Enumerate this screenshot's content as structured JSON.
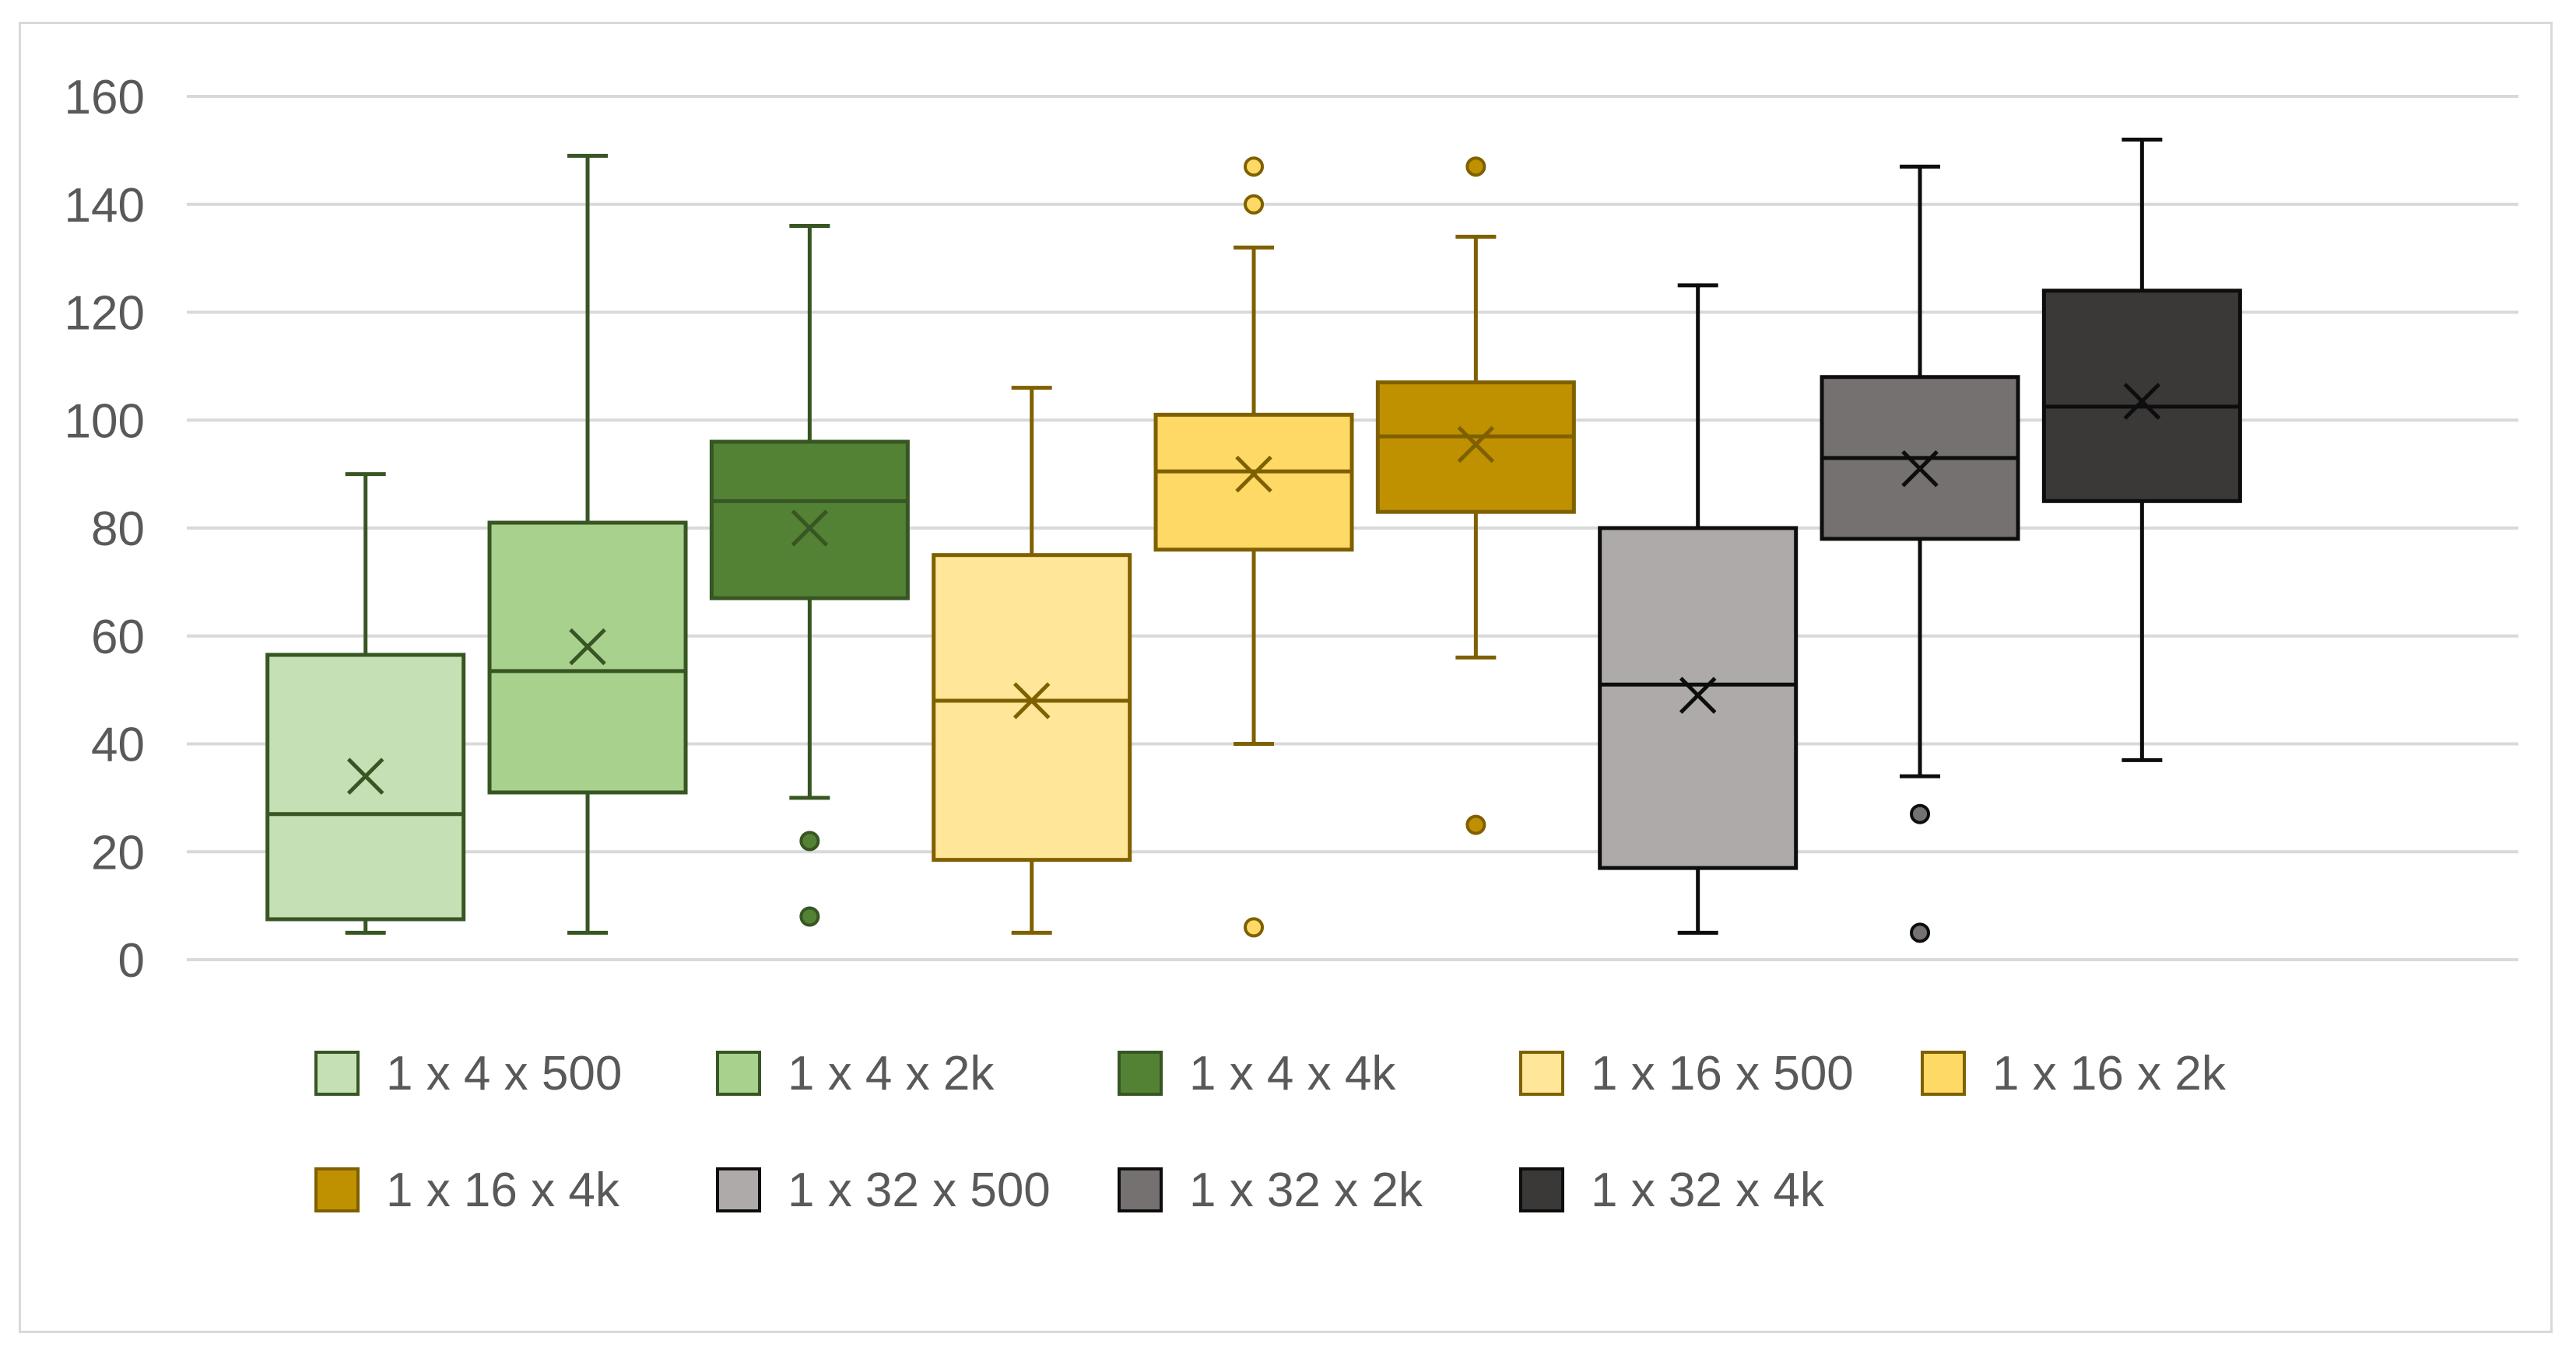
{
  "chart_data": {
    "type": "boxplot",
    "title": "",
    "xlabel": "",
    "ylabel": "",
    "ylim": [
      0,
      160
    ],
    "y_ticks": [
      0,
      20,
      40,
      60,
      80,
      100,
      120,
      140,
      160
    ],
    "grid": true,
    "legend_position": "bottom",
    "series": [
      {
        "name": "1 x 4 x 500",
        "fill": "#c5e0b4",
        "stroke": "#375623",
        "min": 5,
        "q1": 7.5,
        "median": 27,
        "q3": 56.5,
        "max": 90,
        "mean": 34,
        "outliers": []
      },
      {
        "name": "1 x 4 x 2k",
        "fill": "#a9d18e",
        "stroke": "#375623",
        "min": 5,
        "q1": 31,
        "median": 53.5,
        "q3": 81,
        "max": 149,
        "mean": 58,
        "outliers": []
      },
      {
        "name": "1 x 4 x 4k",
        "fill": "#548235",
        "stroke": "#375623",
        "min": 30,
        "q1": 67,
        "median": 85,
        "q3": 96,
        "max": 136,
        "mean": 80,
        "outliers": [
          22,
          8
        ]
      },
      {
        "name": "1 x 16 x 500",
        "fill": "#ffe699",
        "stroke": "#7f6000",
        "min": 5,
        "q1": 18.5,
        "median": 48,
        "q3": 75,
        "max": 106,
        "mean": 48,
        "outliers": []
      },
      {
        "name": "1 x 16 x 2k",
        "fill": "#ffd966",
        "stroke": "#7f6000",
        "min": 40,
        "q1": 76,
        "median": 90.5,
        "q3": 101,
        "max": 132,
        "mean": 90,
        "outliers": [
          147,
          140,
          6
        ]
      },
      {
        "name": "1 x 16 x 4k",
        "fill": "#bf9000",
        "stroke": "#7f6000",
        "min": 56,
        "q1": 83,
        "median": 97,
        "q3": 107,
        "max": 134,
        "mean": 95.5,
        "outliers": [
          147,
          25
        ]
      },
      {
        "name": "1 x 32 x 500",
        "fill": "#aeaaaa",
        "stroke": "#0d0d0d",
        "min": 5,
        "q1": 17,
        "median": 51,
        "q3": 80,
        "max": 125,
        "mean": 49,
        "outliers": []
      },
      {
        "name": "1 x 32 x 2k",
        "fill": "#757171",
        "stroke": "#0d0d0d",
        "min": 34,
        "q1": 78,
        "median": 93,
        "q3": 108,
        "max": 147,
        "mean": 91,
        "outliers": [
          27,
          5
        ]
      },
      {
        "name": "1 x 32 x 4k",
        "fill": "#3b3838",
        "stroke": "#0d0d0d",
        "min": 37,
        "q1": 85,
        "median": 102.5,
        "q3": 124,
        "max": 152,
        "mean": 103.5,
        "outliers": []
      }
    ]
  }
}
